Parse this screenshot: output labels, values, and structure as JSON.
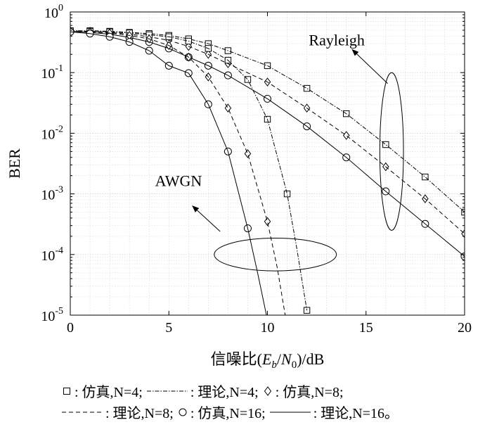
{
  "chart_data": {
    "type": "line",
    "xlabel": "信噪比(E_b/N_0)/dB",
    "ylabel": "BER",
    "xlim": [
      0,
      20
    ],
    "ylim": [
      1e-05,
      1
    ],
    "yscale": "log",
    "grid": true,
    "x_ticks": [
      "0",
      "5",
      "10",
      "15",
      "20"
    ],
    "y_ticks": [
      {
        "base": "10",
        "exp": "0"
      },
      {
        "base": "10",
        "exp": "-1"
      },
      {
        "base": "10",
        "exp": "-2"
      },
      {
        "base": "10",
        "exp": "-3"
      },
      {
        "base": "10",
        "exp": "-4"
      },
      {
        "base": "10",
        "exp": "-5"
      }
    ],
    "annotations": [
      {
        "text": "Rayleigh",
        "ellipse": {
          "cx": 16.3,
          "cy_log": -2.3,
          "rx": 0.6,
          "ry_dec": 1.3
        },
        "arrow_from": [
          16.1,
          -1.18
        ],
        "arrow_to": [
          14.3,
          -0.62
        ]
      },
      {
        "text": "AWGN",
        "ellipse": {
          "cx": 10.4,
          "cy_log": -4.0,
          "rx": 3.1,
          "ry_dec": 0.27
        },
        "arrow_from": [
          7.6,
          -3.62
        ],
        "arrow_to": [
          6.2,
          -3.2
        ]
      }
    ],
    "series": [
      {
        "channel": "Rayleigh",
        "kind": "sim",
        "N": 4,
        "marker": "square",
        "x": [
          0,
          1,
          2,
          3,
          4,
          5,
          6,
          7,
          8,
          10,
          12,
          14,
          16,
          18,
          20
        ],
        "y": [
          0.49,
          0.49,
          0.48,
          0.46,
          0.44,
          0.41,
          0.36,
          0.3,
          0.23,
          0.13,
          0.055,
          0.021,
          0.0065,
          0.0019,
          0.0005
        ]
      },
      {
        "channel": "Rayleigh",
        "kind": "theory",
        "N": 4,
        "dash": "dashdot",
        "x": [
          0,
          1,
          2,
          3,
          4,
          5,
          6,
          7,
          8,
          10,
          12,
          14,
          16,
          18,
          20
        ],
        "y": [
          0.49,
          0.49,
          0.48,
          0.46,
          0.44,
          0.41,
          0.36,
          0.3,
          0.23,
          0.13,
          0.055,
          0.021,
          0.0065,
          0.0019,
          0.0005
        ]
      },
      {
        "channel": "Rayleigh",
        "kind": "sim",
        "N": 8,
        "marker": "diamond",
        "x": [
          0,
          1,
          2,
          3,
          4,
          5,
          6,
          7,
          8,
          10,
          12,
          14,
          16,
          18,
          20
        ],
        "y": [
          0.49,
          0.48,
          0.46,
          0.43,
          0.39,
          0.34,
          0.27,
          0.2,
          0.14,
          0.07,
          0.026,
          0.0092,
          0.0028,
          0.00083,
          0.00022
        ]
      },
      {
        "channel": "Rayleigh",
        "kind": "theory",
        "N": 8,
        "dash": "dashed",
        "x": [
          0,
          1,
          2,
          3,
          4,
          5,
          6,
          7,
          8,
          10,
          12,
          14,
          16,
          18,
          20
        ],
        "y": [
          0.49,
          0.48,
          0.46,
          0.43,
          0.39,
          0.34,
          0.27,
          0.2,
          0.14,
          0.07,
          0.026,
          0.0092,
          0.0028,
          0.00083,
          0.00022
        ]
      },
      {
        "channel": "Rayleigh",
        "kind": "sim",
        "N": 16,
        "marker": "circle",
        "x": [
          0,
          1,
          2,
          3,
          4,
          5,
          6,
          7,
          8,
          10,
          12,
          14,
          16,
          18,
          20
        ],
        "y": [
          0.48,
          0.46,
          0.43,
          0.38,
          0.32,
          0.25,
          0.18,
          0.13,
          0.09,
          0.037,
          0.013,
          0.004,
          0.0011,
          0.00032,
          9.3e-05
        ]
      },
      {
        "channel": "Rayleigh",
        "kind": "theory",
        "N": 16,
        "dash": "solid",
        "x": [
          0,
          1,
          2,
          3,
          4,
          5,
          6,
          7,
          8,
          10,
          12,
          14,
          16,
          18,
          20
        ],
        "y": [
          0.48,
          0.46,
          0.43,
          0.38,
          0.32,
          0.25,
          0.18,
          0.13,
          0.09,
          0.037,
          0.013,
          0.004,
          0.0011,
          0.00032,
          9.3e-05
        ]
      },
      {
        "channel": "AWGN",
        "kind": "sim",
        "N": 4,
        "marker": "square",
        "x": [
          0,
          1,
          2,
          3,
          4,
          5,
          6,
          7,
          8,
          9,
          10,
          11,
          12
        ],
        "y": [
          0.49,
          0.48,
          0.47,
          0.45,
          0.42,
          0.39,
          0.33,
          0.25,
          0.16,
          0.077,
          0.017,
          0.001,
          1.2e-05
        ]
      },
      {
        "channel": "AWGN",
        "kind": "theory",
        "N": 4,
        "dash": "dashdot",
        "x": [
          0,
          1,
          2,
          3,
          4,
          5,
          6,
          7,
          8,
          9,
          10,
          11,
          11.5,
          12
        ],
        "y": [
          0.49,
          0.48,
          0.47,
          0.45,
          0.42,
          0.39,
          0.33,
          0.25,
          0.16,
          0.077,
          0.017,
          0.001,
          0.00012,
          1.2e-05
        ]
      },
      {
        "channel": "AWGN",
        "kind": "sim",
        "N": 8,
        "marker": "diamond",
        "x": [
          0,
          1,
          2,
          3,
          4,
          5,
          6,
          7,
          8,
          9,
          10
        ],
        "y": [
          0.48,
          0.47,
          0.45,
          0.41,
          0.36,
          0.28,
          0.18,
          0.085,
          0.026,
          0.0046,
          0.00035
        ]
      },
      {
        "channel": "AWGN",
        "kind": "theory",
        "N": 8,
        "dash": "dashed",
        "x": [
          0,
          1,
          2,
          3,
          4,
          5,
          6,
          7,
          8,
          9,
          10,
          10.5,
          10.9
        ],
        "y": [
          0.48,
          0.47,
          0.45,
          0.41,
          0.36,
          0.28,
          0.18,
          0.085,
          0.026,
          0.0046,
          0.00035,
          6e-05,
          1e-05
        ]
      },
      {
        "channel": "AWGN",
        "kind": "sim",
        "N": 16,
        "marker": "circle",
        "x": [
          0,
          1,
          2,
          3,
          4,
          5,
          6,
          7,
          8,
          9
        ],
        "y": [
          0.47,
          0.44,
          0.39,
          0.32,
          0.23,
          0.13,
          0.098,
          0.03,
          0.005,
          0.00027
        ]
      },
      {
        "channel": "AWGN",
        "kind": "theory",
        "N": 16,
        "dash": "solid",
        "x": [
          0,
          1,
          2,
          3,
          4,
          5,
          6,
          7,
          8,
          9,
          9.5,
          9.95
        ],
        "y": [
          0.47,
          0.44,
          0.39,
          0.32,
          0.23,
          0.13,
          0.098,
          0.03,
          0.005,
          0.00027,
          5e-05,
          1e-05
        ]
      }
    ]
  },
  "legend": {
    "rows": [
      [
        {
          "symbol": "square",
          "text": ": 仿真,N=4;"
        },
        {
          "symbol": "dashdot",
          "text": ": 理论,N=4;"
        },
        {
          "symbol": "diamond",
          "text": ": 仿真,N=8;"
        }
      ],
      [
        {
          "symbol": "dashed",
          "text": ": 理论,N=8;"
        },
        {
          "symbol": "circle",
          "text": ": 仿真,N=16;"
        },
        {
          "symbol": "solid",
          "text": ": 理论,N=16。"
        }
      ]
    ]
  },
  "labels": {
    "rayleigh": "Rayleigh",
    "awgn": "AWGN",
    "ylabel": "BER",
    "xlabel_prefix": "信噪比(",
    "xlabel_E": "E",
    "xlabel_b": "b",
    "xlabel_N": "N",
    "xlabel_0": "0",
    "xlabel_suffix": ")/dB"
  }
}
